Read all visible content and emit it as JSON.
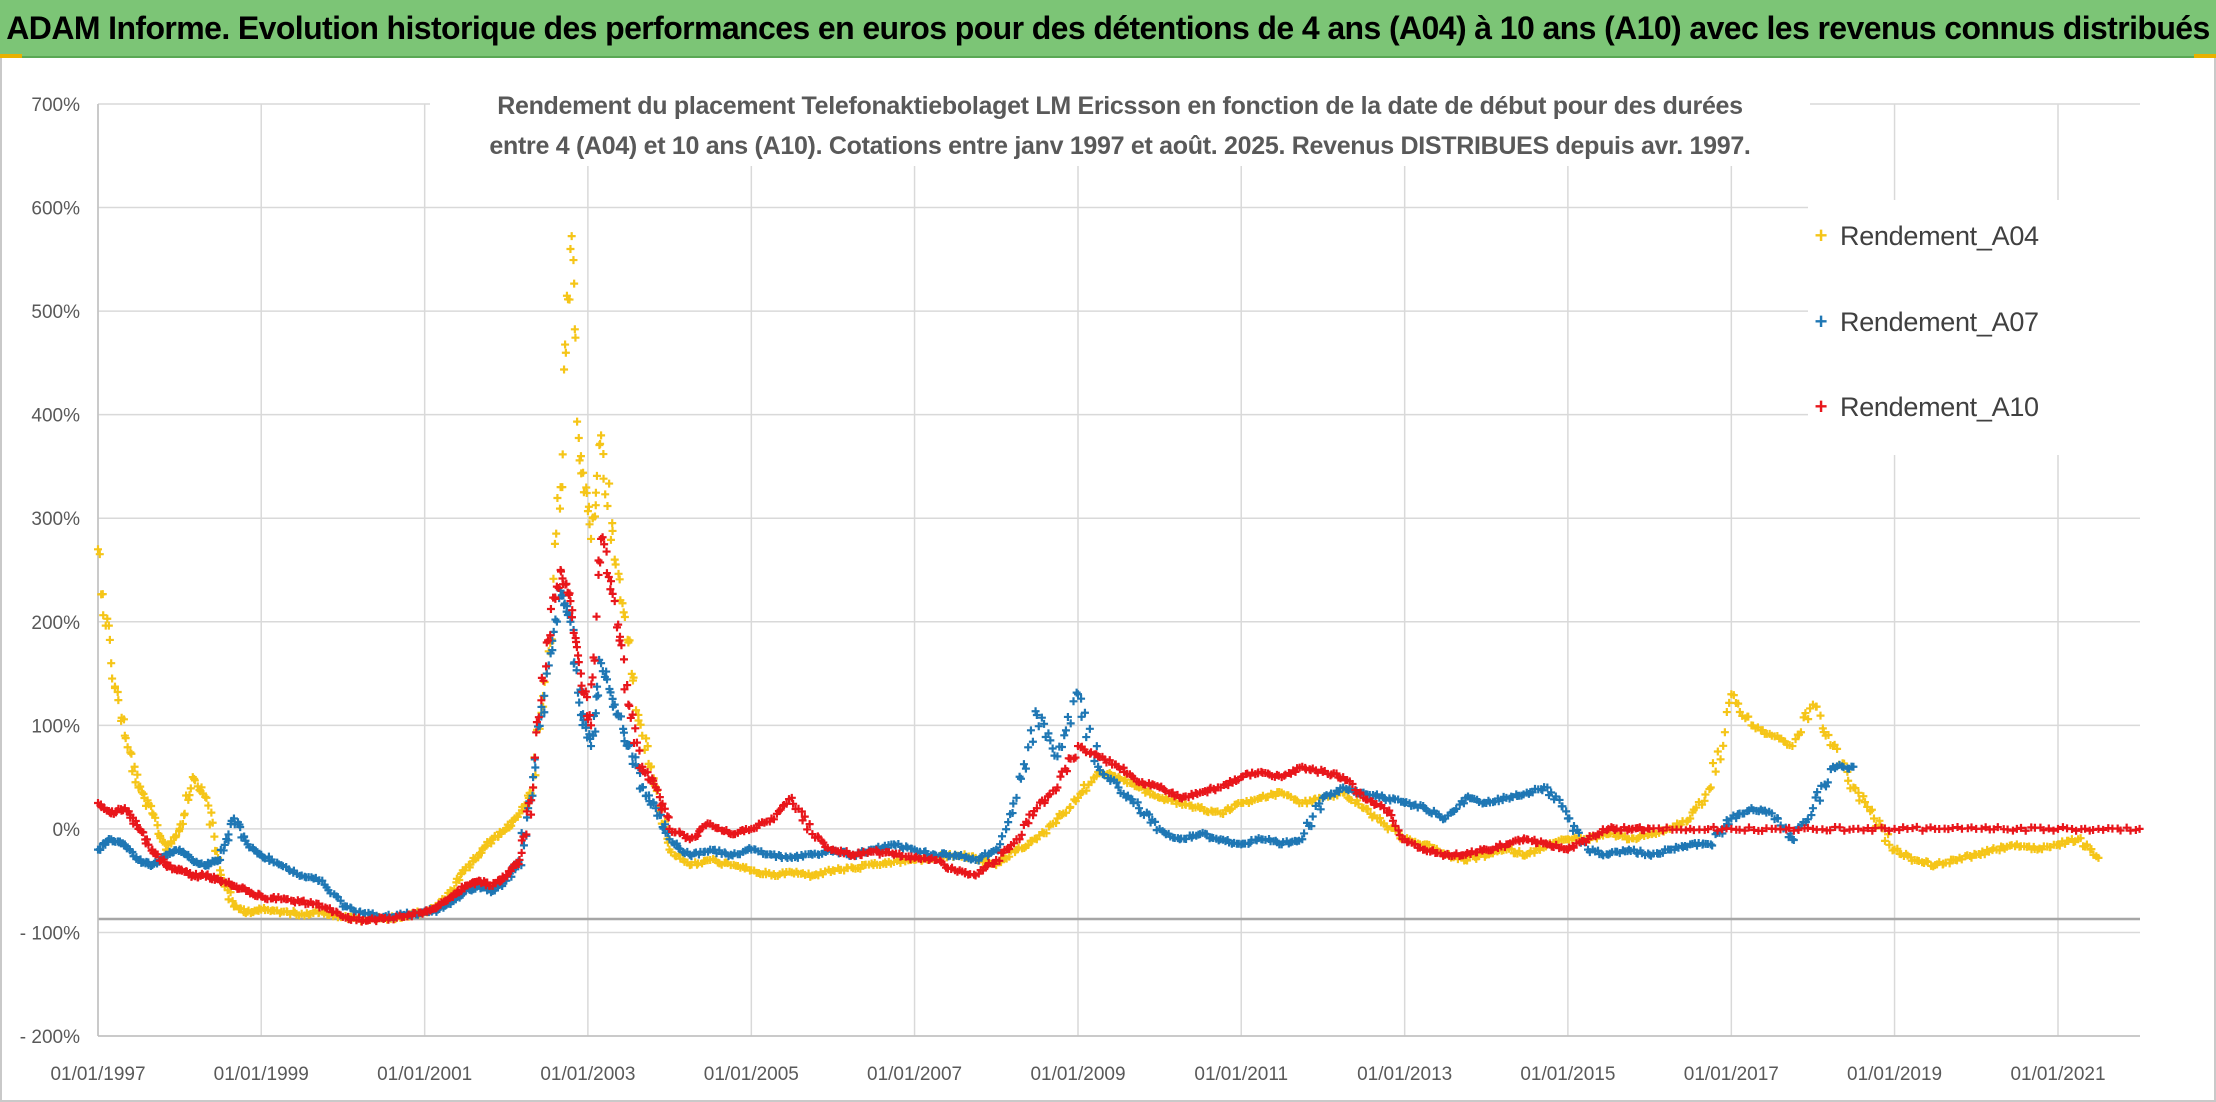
{
  "banner": {
    "title": "ADAM Informe. Evolution historique des performances en euros pour des détentions de 4 ans (A04) à 10 ans (A10) avec les revenus connus distribués"
  },
  "chart_data": {
    "type": "scatter",
    "title_line1": "Rendement du placement Telefonaktiebolaget LM Ericsson en fonction de la date de début pour des durées",
    "title_line2": "entre 4 (A04) et 10 ans (A10). Cotations entre janv 1997 et août. 2025. Revenus DISTRIBUES depuis avr. 1997.",
    "xlabel": "",
    "ylabel": "",
    "x_range": [
      "1997-01-01",
      "2022-01-01"
    ],
    "ylim": [
      -200,
      700
    ],
    "y_ticks": [
      "700%",
      "600%",
      "500%",
      "400%",
      "300%",
      "200%",
      "100%",
      "0%",
      "- 100%",
      "- 200%"
    ],
    "x_ticks": [
      "01/01/1997",
      "01/01/1999",
      "01/01/2001",
      "01/01/2003",
      "01/01/2005",
      "01/01/2007",
      "01/01/2009",
      "01/01/2011",
      "01/01/2013",
      "01/01/2015",
      "01/01/2017",
      "01/01/2019",
      "01/01/2021"
    ],
    "reference_line_y": -87,
    "grid": true,
    "legend_position": "top-right",
    "series": [
      {
        "name": "Rendement_A04",
        "color": "#f5c518",
        "x": [
          "1997-01-01",
          "1997-03-01",
          "1997-05-01",
          "1997-07-01",
          "1997-09-01",
          "1997-11-01",
          "1998-01-01",
          "1998-03-01",
          "1998-05-01",
          "1998-07-01",
          "1998-09-01",
          "1998-11-01",
          "1999-01-01",
          "1999-04-01",
          "1999-07-01",
          "1999-10-01",
          "2000-01-01",
          "2000-04-01",
          "2000-07-01",
          "2000-10-01",
          "2001-01-01",
          "2001-03-01",
          "2001-05-01",
          "2001-07-01",
          "2001-09-01",
          "2001-11-01",
          "2002-01-01",
          "2002-03-01",
          "2002-05-01",
          "2002-07-01",
          "2002-09-01",
          "2002-10-15",
          "2002-12-01",
          "2003-01-15",
          "2003-03-01",
          "2003-05-01",
          "2003-07-01",
          "2003-09-01",
          "2003-11-01",
          "2004-01-01",
          "2004-04-01",
          "2004-07-01",
          "2004-10-01",
          "2005-01-01",
          "2005-04-01",
          "2005-07-01",
          "2005-10-01",
          "2006-01-01",
          "2006-04-01",
          "2006-07-01",
          "2006-10-01",
          "2007-01-01",
          "2007-04-01",
          "2007-07-01",
          "2007-10-01",
          "2008-01-01",
          "2008-04-01",
          "2008-07-01",
          "2008-10-01",
          "2009-01-01",
          "2009-04-01",
          "2009-07-01",
          "2009-10-01",
          "2010-01-01",
          "2010-04-01",
          "2010-07-01",
          "2010-10-01",
          "2011-01-01",
          "2011-04-01",
          "2011-07-01",
          "2011-10-01",
          "2012-01-01",
          "2012-04-01",
          "2012-07-01",
          "2012-10-01",
          "2013-01-01",
          "2013-04-01",
          "2013-07-01",
          "2013-10-01",
          "2014-01-01",
          "2014-04-01",
          "2014-07-01",
          "2014-10-01",
          "2015-01-01",
          "2015-04-01",
          "2015-07-01",
          "2015-10-01",
          "2016-01-01",
          "2016-04-01",
          "2016-07-01",
          "2016-10-01",
          "2017-01-01",
          "2017-04-01",
          "2017-07-01",
          "2017-10-01",
          "2018-01-01",
          "2018-04-01",
          "2018-07-01",
          "2018-10-01",
          "2019-01-01",
          "2019-04-01",
          "2019-07-01",
          "2019-10-01",
          "2020-01-01",
          "2020-04-01",
          "2020-07-01",
          "2020-10-01",
          "2021-01-01",
          "2021-04-01",
          "2021-07-01"
        ],
        "values": [
          270,
          160,
          90,
          40,
          15,
          -20,
          0,
          50,
          30,
          -40,
          -75,
          -80,
          -78,
          -80,
          -82,
          -80,
          -85,
          -88,
          -86,
          -85,
          -80,
          -75,
          -60,
          -40,
          -25,
          -10,
          0,
          15,
          40,
          150,
          330,
          560,
          360,
          280,
          380,
          260,
          180,
          90,
          40,
          -20,
          -35,
          -30,
          -35,
          -40,
          -45,
          -42,
          -45,
          -40,
          -38,
          -35,
          -32,
          -30,
          -28,
          -25,
          -28,
          -35,
          -20,
          -10,
          10,
          30,
          55,
          50,
          40,
          30,
          25,
          20,
          15,
          25,
          30,
          35,
          25,
          30,
          35,
          20,
          5,
          -10,
          -15,
          -25,
          -30,
          -25,
          -20,
          -25,
          -15,
          -10,
          -10,
          -5,
          -10,
          -5,
          0,
          10,
          40,
          130,
          100,
          90,
          80,
          120,
          80,
          40,
          10,
          -20,
          -30,
          -35,
          -30,
          -25,
          -20,
          -15,
          -20,
          -15,
          -10,
          -28
        ]
      },
      {
        "name": "Rendement_A07",
        "color": "#1f77b4",
        "x": [
          "1997-01-01",
          "1997-03-01",
          "1997-05-01",
          "1997-07-01",
          "1997-09-01",
          "1997-11-01",
          "1998-01-01",
          "1998-03-01",
          "1998-05-01",
          "1998-07-01",
          "1998-09-01",
          "1998-11-01",
          "1999-01-01",
          "1999-04-01",
          "1999-07-01",
          "1999-10-01",
          "2000-01-01",
          "2000-04-01",
          "2000-07-01",
          "2000-10-01",
          "2001-01-01",
          "2001-03-01",
          "2001-05-01",
          "2001-07-01",
          "2001-09-01",
          "2001-11-01",
          "2002-01-01",
          "2002-03-01",
          "2002-05-01",
          "2002-07-01",
          "2002-09-01",
          "2002-10-15",
          "2002-12-01",
          "2003-01-15",
          "2003-03-01",
          "2003-05-01",
          "2003-07-01",
          "2003-09-01",
          "2003-11-01",
          "2004-01-01",
          "2004-04-01",
          "2004-07-01",
          "2004-10-01",
          "2005-01-01",
          "2005-04-01",
          "2005-07-01",
          "2005-10-01",
          "2006-01-01",
          "2006-04-01",
          "2006-07-01",
          "2006-10-01",
          "2007-01-01",
          "2007-04-01",
          "2007-07-01",
          "2007-10-01",
          "2008-01-01",
          "2008-04-01",
          "2008-07-01",
          "2008-10-01",
          "2009-01-01",
          "2009-04-01",
          "2009-07-01",
          "2009-10-01",
          "2010-01-01",
          "2010-04-01",
          "2010-07-01",
          "2010-10-01",
          "2011-01-01",
          "2011-04-01",
          "2011-07-01",
          "2011-10-01",
          "2012-01-01",
          "2012-04-01",
          "2012-07-01",
          "2012-10-01",
          "2013-01-01",
          "2013-04-01",
          "2013-07-01",
          "2013-10-01",
          "2014-01-01",
          "2014-04-01",
          "2014-07-01",
          "2014-10-01",
          "2015-01-01",
          "2015-04-01",
          "2015-07-01",
          "2015-10-01",
          "2016-01-01",
          "2016-04-01",
          "2016-07-01",
          "2016-10-01",
          "2017-01-01",
          "2017-04-01",
          "2017-07-01",
          "2017-10-01",
          "2018-01-01",
          "2018-04-01",
          "2018-07-01"
        ],
        "values": [
          -20,
          -10,
          -15,
          -30,
          -35,
          -25,
          -20,
          -30,
          -35,
          -30,
          10,
          -15,
          -25,
          -35,
          -45,
          -50,
          -75,
          -82,
          -85,
          -83,
          -80,
          -78,
          -70,
          -60,
          -55,
          -60,
          -50,
          -30,
          50,
          150,
          230,
          200,
          110,
          80,
          160,
          120,
          80,
          40,
          20,
          -10,
          -25,
          -20,
          -25,
          -20,
          -25,
          -28,
          -25,
          -22,
          -25,
          -20,
          -15,
          -20,
          -25,
          -25,
          -30,
          -20,
          30,
          110,
          70,
          130,
          60,
          40,
          20,
          0,
          -10,
          -5,
          -10,
          -15,
          -10,
          -15,
          -10,
          30,
          40,
          35,
          30,
          25,
          20,
          10,
          30,
          25,
          30,
          35,
          40,
          10,
          -20,
          -25,
          -20,
          -25,
          -20,
          -15,
          -15,
          10,
          20,
          15,
          -10,
          20,
          60,
          60
        ]
      },
      {
        "name": "Rendement_A10",
        "color": "#e8161b",
        "x": [
          "1997-01-01",
          "1997-03-01",
          "1997-05-01",
          "1997-07-01",
          "1997-09-01",
          "1997-11-01",
          "1998-01-01",
          "1998-03-01",
          "1998-05-01",
          "1998-07-01",
          "1998-09-01",
          "1998-11-01",
          "1999-01-01",
          "1999-04-01",
          "1999-07-01",
          "1999-10-01",
          "2000-01-01",
          "2000-04-01",
          "2000-07-01",
          "2000-10-01",
          "2001-01-01",
          "2001-03-01",
          "2001-05-01",
          "2001-07-01",
          "2001-09-01",
          "2001-11-01",
          "2002-01-01",
          "2002-03-01",
          "2002-05-01",
          "2002-07-01",
          "2002-09-01",
          "2002-10-15",
          "2002-12-01",
          "2003-01-15",
          "2003-03-01",
          "2003-05-01",
          "2003-07-01",
          "2003-09-01",
          "2003-11-01",
          "2004-01-01",
          "2004-04-01",
          "2004-07-01",
          "2004-10-01",
          "2005-01-01",
          "2005-04-01",
          "2005-07-01",
          "2005-10-01",
          "2006-01-01",
          "2006-04-01",
          "2006-07-01",
          "2006-10-01",
          "2007-01-01",
          "2007-04-01",
          "2007-07-01",
          "2007-10-01",
          "2008-01-01",
          "2008-04-01",
          "2008-07-01",
          "2008-10-01",
          "2009-01-01",
          "2009-04-01",
          "2009-07-01",
          "2009-10-01",
          "2010-01-01",
          "2010-04-01",
          "2010-07-01",
          "2010-10-01",
          "2011-01-01",
          "2011-04-01",
          "2011-07-01",
          "2011-10-01",
          "2012-01-01",
          "2012-04-01",
          "2012-07-01",
          "2012-10-01",
          "2013-01-01",
          "2013-04-01",
          "2013-07-01",
          "2013-10-01",
          "2014-01-01",
          "2014-04-01",
          "2014-07-01",
          "2014-10-01",
          "2015-01-01",
          "2015-04-01",
          "2015-07-01",
          "2015-10-01",
          "2016-01-01",
          "2016-07-01",
          "2017-01-01",
          "2017-07-01",
          "2018-01-01",
          "2018-07-01",
          "2019-01-01",
          "2019-07-01",
          "2020-01-01",
          "2020-07-01",
          "2021-01-01",
          "2021-07-01",
          "2022-01-01"
        ],
        "values": [
          25,
          15,
          20,
          0,
          -20,
          -35,
          -40,
          -45,
          -45,
          -50,
          -55,
          -60,
          -65,
          -68,
          -70,
          -75,
          -85,
          -88,
          -87,
          -85,
          -80,
          -75,
          -65,
          -55,
          -50,
          -55,
          -45,
          -30,
          40,
          180,
          250,
          220,
          150,
          100,
          280,
          220,
          120,
          60,
          40,
          0,
          -10,
          5,
          -5,
          0,
          10,
          30,
          -5,
          -20,
          -25,
          -22,
          -25,
          -28,
          -30,
          -40,
          -45,
          -30,
          -10,
          20,
          40,
          80,
          70,
          60,
          45,
          40,
          30,
          35,
          40,
          50,
          55,
          50,
          60,
          55,
          50,
          30,
          20,
          -10,
          -20,
          -25,
          -25,
          -20,
          -15,
          -10,
          -15,
          -20,
          -10,
          0,
          0,
          0,
          0,
          0,
          0,
          0,
          0,
          0,
          0,
          0,
          0,
          0,
          0,
          0
        ]
      }
    ]
  }
}
